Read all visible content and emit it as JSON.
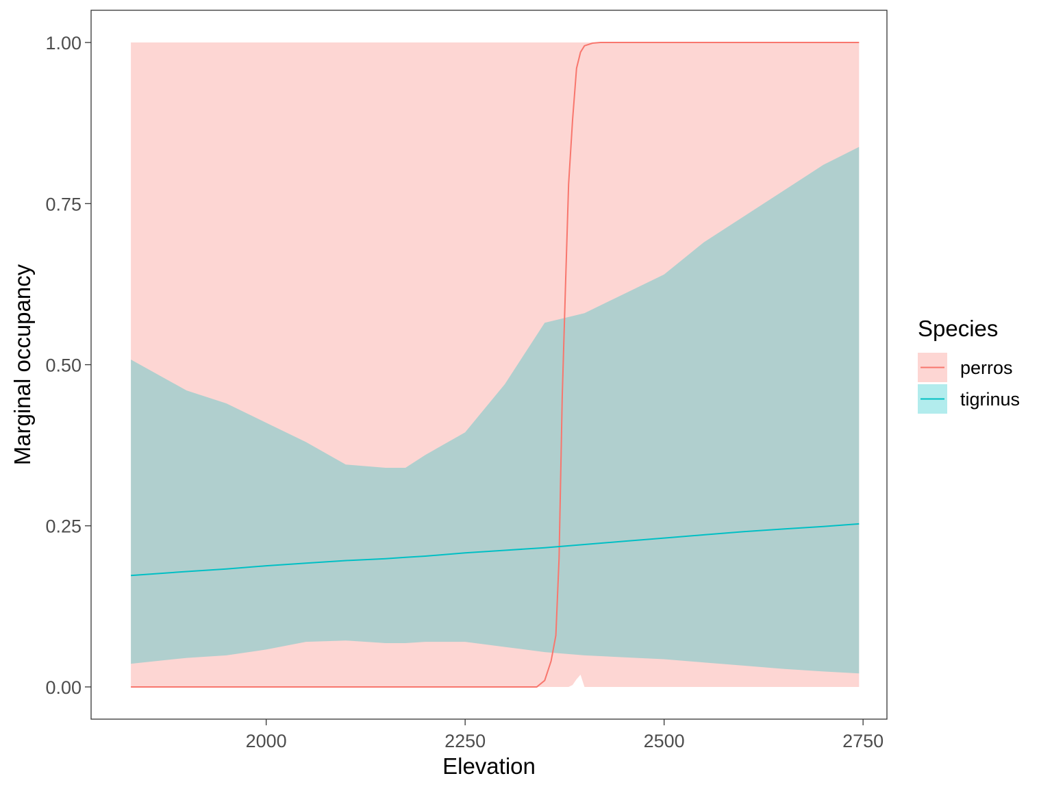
{
  "chart_data": {
    "type": "line",
    "xlabel": "Elevation",
    "ylabel": "Marginal occupancy",
    "xlim": [
      1780,
      2780
    ],
    "ylim": [
      -0.05,
      1.05
    ],
    "x_ticks": [
      2000,
      2250,
      2500,
      2750
    ],
    "x_tick_labels": [
      "2000",
      "2250",
      "2500",
      "2750"
    ],
    "y_ticks": [
      0,
      0.25,
      0.5,
      0.75,
      1.0
    ],
    "y_tick_labels": [
      "0.00",
      "0.25",
      "0.50",
      "0.75",
      "1.00"
    ],
    "grid": false,
    "legend": {
      "title": "Species",
      "placement": "right",
      "entries": [
        "perros",
        "tigrinus"
      ]
    },
    "series": [
      {
        "name": "perros",
        "color": "#f8766d",
        "ribbon_color": "#f8766d",
        "ribbon_opacity": 0.3,
        "x": [
          1830,
          2340,
          2350,
          2358,
          2364,
          2368,
          2372,
          2376,
          2380,
          2385,
          2390,
          2395,
          2400,
          2410,
          2420,
          2440,
          2745
        ],
        "y": [
          0,
          0,
          0.01,
          0.04,
          0.08,
          0.2,
          0.45,
          0.62,
          0.78,
          0.88,
          0.96,
          0.985,
          0.995,
          0.999,
          1.0,
          1.0,
          1.0
        ],
        "lower": [
          0,
          0,
          0,
          0,
          0,
          0,
          0,
          0,
          0,
          0.003,
          0.012,
          0.019,
          0,
          0,
          0,
          0,
          0
        ],
        "upper": [
          1,
          1,
          1,
          1,
          1,
          1,
          1,
          1,
          1,
          1,
          1,
          1,
          1,
          1,
          1,
          1,
          1
        ]
      },
      {
        "name": "tigrinus",
        "color": "#00bfc4",
        "ribbon_color": "#00bfc4",
        "ribbon_opacity": 0.3,
        "x": [
          1830,
          1900,
          1950,
          2000,
          2050,
          2100,
          2150,
          2175,
          2200,
          2250,
          2300,
          2350,
          2400,
          2450,
          2500,
          2550,
          2600,
          2650,
          2700,
          2745
        ],
        "y": [
          0.173,
          0.179,
          0.183,
          0.188,
          0.192,
          0.196,
          0.199,
          0.201,
          0.203,
          0.208,
          0.212,
          0.216,
          0.221,
          0.226,
          0.231,
          0.236,
          0.241,
          0.245,
          0.249,
          0.253
        ],
        "lower": [
          0.036,
          0.045,
          0.049,
          0.058,
          0.07,
          0.072,
          0.068,
          0.068,
          0.07,
          0.07,
          0.062,
          0.054,
          0.049,
          0.046,
          0.043,
          0.038,
          0.033,
          0.028,
          0.024,
          0.021
        ],
        "upper": [
          0.508,
          0.46,
          0.44,
          0.41,
          0.38,
          0.345,
          0.34,
          0.34,
          0.36,
          0.395,
          0.47,
          0.565,
          0.58,
          0.61,
          0.64,
          0.69,
          0.73,
          0.77,
          0.81,
          0.838
        ]
      }
    ]
  }
}
